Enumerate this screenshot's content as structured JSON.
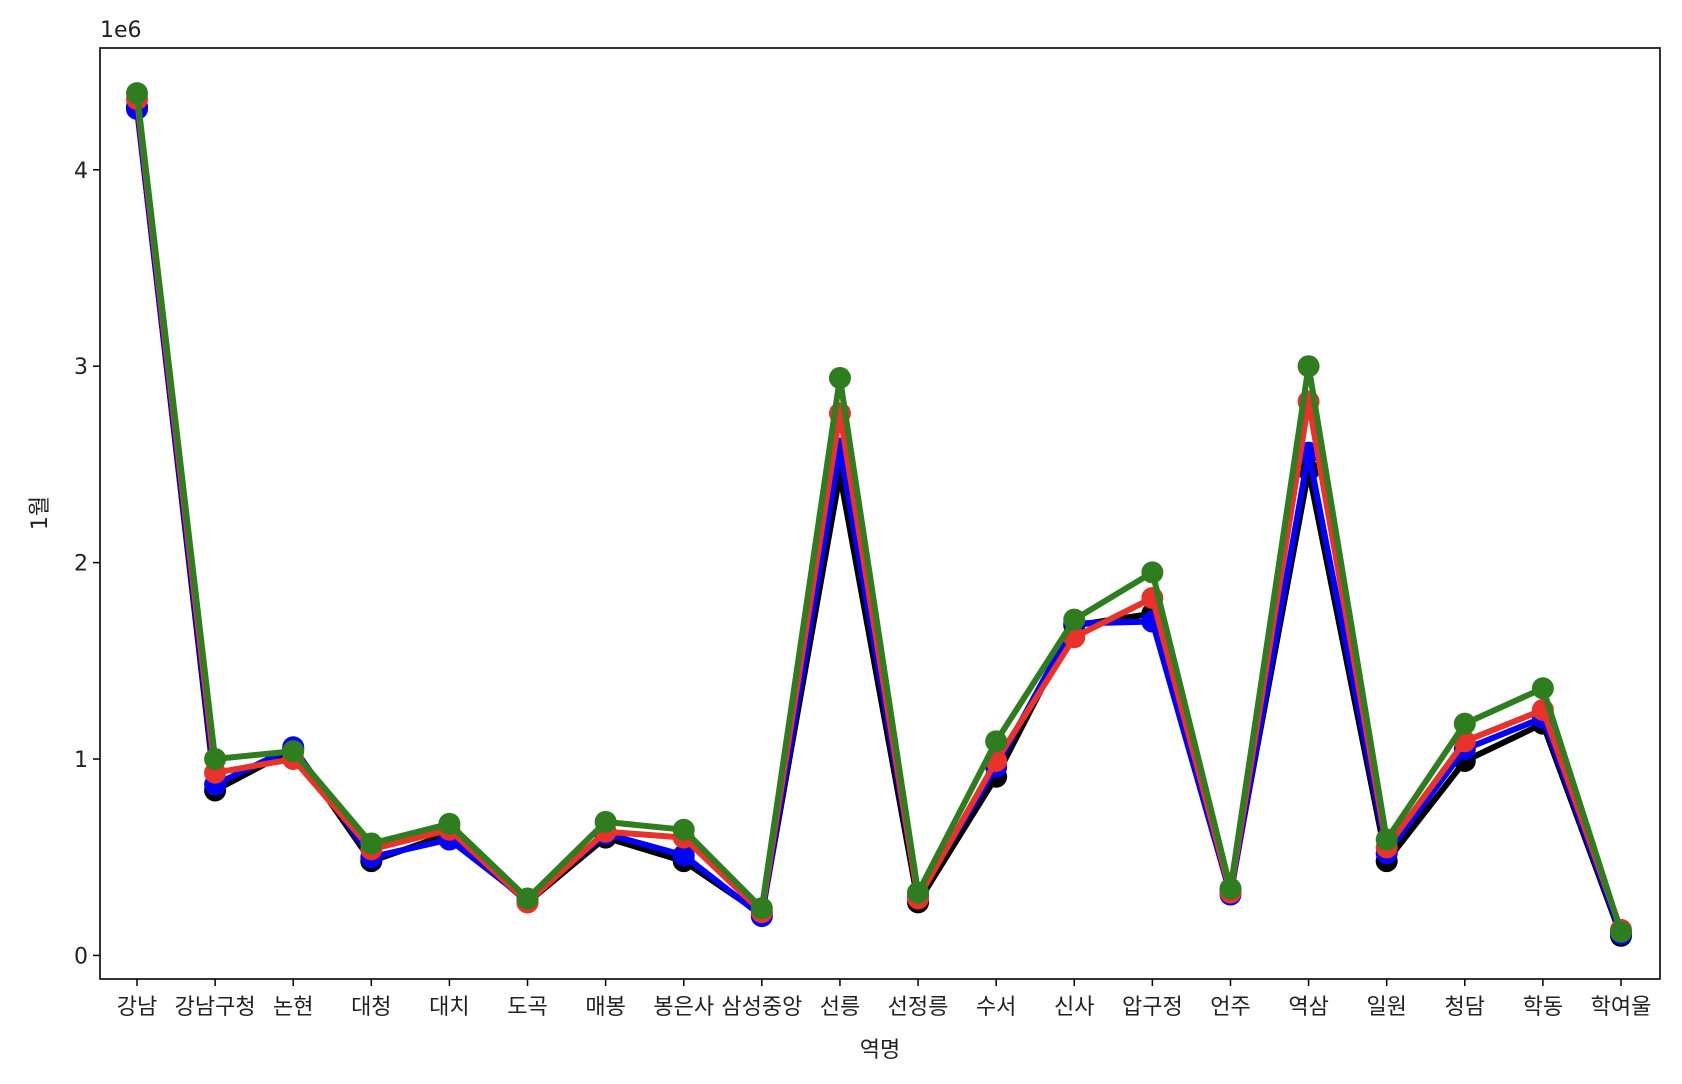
{
  "chart_data": {
    "type": "line",
    "xlabel": "역명",
    "ylabel": "1월",
    "y_offset_text": "1e6",
    "y_scale_factor": 1000000,
    "ylim": [
      -120000,
      4620000
    ],
    "yticks": [
      0,
      1000000,
      2000000,
      3000000,
      4000000
    ],
    "ytick_labels": [
      "0",
      "1",
      "2",
      "3",
      "4"
    ],
    "categories": [
      "강남",
      "강남구청",
      "논현",
      "대청",
      "대치",
      "도곡",
      "매봉",
      "봉은사",
      "삼성중앙",
      "선릉",
      "선정릉",
      "수서",
      "신사",
      "압구정",
      "언주",
      "역삼",
      "일원",
      "청담",
      "학동",
      "학여울"
    ],
    "grid": false,
    "legend": "none",
    "series": [
      {
        "color": "#000000",
        "values": [
          4320000,
          840000,
          1050000,
          480000,
          620000,
          270000,
          600000,
          480000,
          210000,
          2450000,
          270000,
          910000,
          1680000,
          1740000,
          330000,
          2470000,
          480000,
          990000,
          1180000,
          100000
        ]
      },
      {
        "color": "#0000ff",
        "values": [
          4310000,
          870000,
          1060000,
          500000,
          590000,
          280000,
          620000,
          510000,
          200000,
          2580000,
          300000,
          960000,
          1690000,
          1700000,
          310000,
          2560000,
          520000,
          1050000,
          1210000,
          110000
        ]
      },
      {
        "color": "#e8322a",
        "values": [
          4360000,
          930000,
          1000000,
          540000,
          640000,
          270000,
          630000,
          600000,
          220000,
          2760000,
          290000,
          990000,
          1620000,
          1820000,
          320000,
          2820000,
          550000,
          1090000,
          1250000,
          130000
        ]
      },
      {
        "color": "#2e7d1f",
        "values": [
          4390000,
          1000000,
          1040000,
          570000,
          670000,
          290000,
          680000,
          640000,
          240000,
          2940000,
          320000,
          1090000,
          1710000,
          1950000,
          340000,
          3000000,
          590000,
          1180000,
          1360000,
          120000
        ]
      }
    ]
  }
}
